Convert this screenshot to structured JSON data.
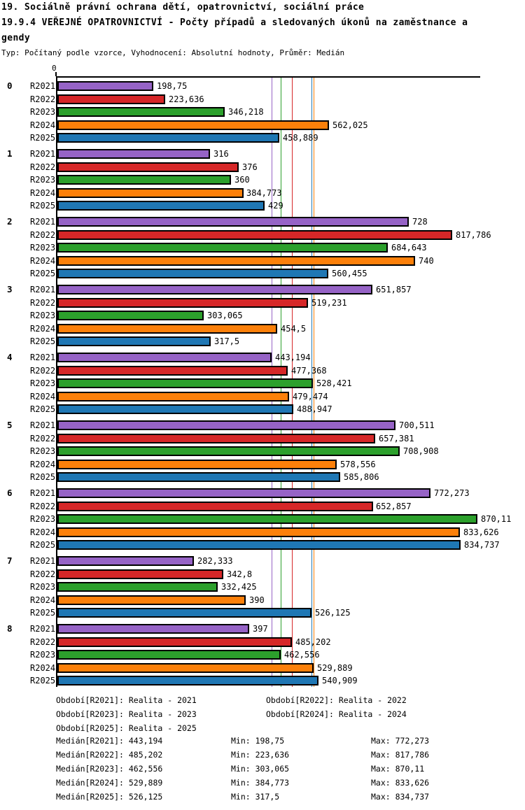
{
  "header": {
    "line1": "19. Sociálně právní ochrana dětí, opatrovnictví, sociální práce",
    "line2": "19.9.4 VEŘEJNÉ OPATROVNICTVÍ - Počty případů a sledovaných úkonů na zaměstnance a",
    "line3": "gendy",
    "meta": "Typ: Počítaný podle vzorce, Vyhodnocení: Absolutní hodnoty, Průměr: Medián"
  },
  "axis": {
    "origin_label": "0"
  },
  "chart_data": {
    "type": "bar",
    "orientation": "horizontal",
    "title": "19.9.4 VEŘEJNÉ OPATROVNICTVÍ - Počty případů a sledovaných úkonů na zaměstnance agendy",
    "xlabel": "",
    "ylabel": "",
    "xlim": [
      0,
      875
    ],
    "grid": false,
    "legend_position": "bottom",
    "categories": [
      "0",
      "1",
      "2",
      "3",
      "4",
      "5",
      "6",
      "7",
      "8"
    ],
    "series": [
      {
        "name": "R2021",
        "color": "#9663C6",
        "values": [
          198.75,
          316,
          728,
          651.857,
          443.194,
          700.511,
          772.273,
          282.333,
          397
        ],
        "labels": [
          "198,75",
          "316",
          "728",
          "651,857",
          "443,194",
          "700,511",
          "772,273",
          "282,333",
          "397"
        ]
      },
      {
        "name": "R2022",
        "color": "#D62728",
        "values": [
          223.636,
          376,
          817.786,
          519.231,
          477.368,
          657.381,
          652.857,
          342.8,
          485.202
        ],
        "labels": [
          "223,636",
          "376",
          "817,786",
          "519,231",
          "477,368",
          "657,381",
          "652,857",
          "342,8",
          "485,202"
        ]
      },
      {
        "name": "R2023",
        "color": "#2CA02C",
        "values": [
          346.218,
          360,
          684.643,
          303.065,
          528.421,
          708.908,
          870.11,
          332.425,
          462.556
        ],
        "labels": [
          "346,218",
          "360",
          "684,643",
          "303,065",
          "528,421",
          "708,908",
          "870,11",
          "332,425",
          "462,556"
        ]
      },
      {
        "name": "R2024",
        "color": "#FC800A",
        "values": [
          562.025,
          384.773,
          740,
          454.5,
          479.474,
          578.556,
          833.626,
          390,
          529.889
        ],
        "labels": [
          "562,025",
          "384,773",
          "740",
          "454,5",
          "479,474",
          "578,556",
          "833,626",
          "390",
          "529,889"
        ]
      },
      {
        "name": "R2025",
        "color": "#1F77B4",
        "values": [
          458.889,
          429,
          560.455,
          317.5,
          488.947,
          585.806,
          834.737,
          526.125,
          540.909
        ],
        "labels": [
          "458,889",
          "429",
          "560,455",
          "317,5",
          "488,947",
          "585,806",
          "834,737",
          "526,125",
          "540,909"
        ]
      }
    ],
    "median_lines": [
      {
        "series": "R2021",
        "value": 443.194,
        "color": "#9663C6"
      },
      {
        "series": "R2023",
        "value": 462.556,
        "color": "#2CA02C"
      },
      {
        "series": "R2022",
        "value": 485.202,
        "color": "#D62728"
      },
      {
        "series": "R2025",
        "value": 526.125,
        "color": "#1F77B4"
      },
      {
        "series": "R2024",
        "value": 529.889,
        "color": "#FC800A"
      }
    ]
  },
  "legend": {
    "items": [
      {
        "text": "Období[R2021]: Realita - 2021",
        "row": 0,
        "col": 0
      },
      {
        "text": "Období[R2022]: Realita - 2022",
        "row": 0,
        "col": 1
      },
      {
        "text": "Období[R2023]: Realita - 2023",
        "row": 1,
        "col": 0
      },
      {
        "text": "Období[R2024]: Realita - 2024",
        "row": 1,
        "col": 1
      },
      {
        "text": "Období[R2025]: Realita - 2025",
        "row": 2,
        "col": 0
      }
    ]
  },
  "stats": {
    "rows": [
      {
        "median": "Medián[R2021]: 443,194",
        "min": "Min: 198,75",
        "max": "Max: 772,273"
      },
      {
        "median": "Medián[R2022]: 485,202",
        "min": "Min: 223,636",
        "max": "Max: 817,786"
      },
      {
        "median": "Medián[R2023]: 462,556",
        "min": "Min: 303,065",
        "max": "Max: 870,11"
      },
      {
        "median": "Medián[R2024]: 529,889",
        "min": "Min: 384,773",
        "max": "Max: 833,626"
      },
      {
        "median": "Medián[R2025]: 526,125",
        "min": "Min: 317,5",
        "max": "Max: 834,737"
      }
    ]
  }
}
